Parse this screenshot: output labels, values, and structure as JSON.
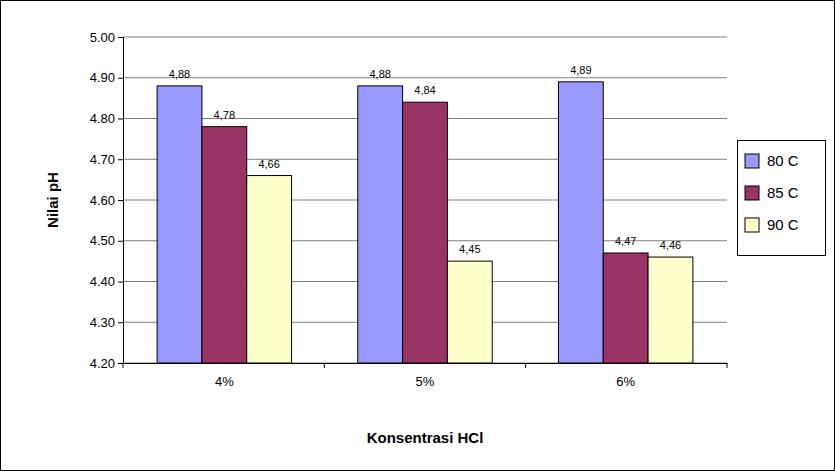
{
  "chart_data": {
    "type": "bar",
    "x_label": "Konsentrasi HCl",
    "y_label": "Nilai pH",
    "categories": [
      "4%",
      "5%",
      "6%"
    ],
    "series": [
      {
        "name": "80 C",
        "color": "#9999ff",
        "values": [
          4.88,
          4.88,
          4.89
        ],
        "value_labels": [
          "4,88",
          "4,88",
          "4,89"
        ]
      },
      {
        "name": "85 C",
        "color": "#993366",
        "values": [
          4.78,
          4.84,
          4.47
        ],
        "value_labels": [
          "4,78",
          "4,84",
          "4,47"
        ]
      },
      {
        "name": "90 C",
        "color": "#ffffcc",
        "values": [
          4.66,
          4.45,
          4.46
        ],
        "value_labels": [
          "4,66",
          "4,45",
          "4,46"
        ]
      }
    ],
    "ylim": [
      4.2,
      5.0
    ],
    "yticks": [
      {
        "value": 4.2,
        "label": "4.20"
      },
      {
        "value": 4.3,
        "label": "4.30"
      },
      {
        "value": 4.4,
        "label": "4.40"
      },
      {
        "value": 4.5,
        "label": "4.50"
      },
      {
        "value": 4.6,
        "label": "4.60"
      },
      {
        "value": 4.7,
        "label": "4.70"
      },
      {
        "value": 4.8,
        "label": "4.80"
      },
      {
        "value": 4.9,
        "label": "4.90"
      },
      {
        "value": 5.0,
        "label": "5.00"
      }
    ],
    "grid": true,
    "legend": "right",
    "data_labels": true
  }
}
